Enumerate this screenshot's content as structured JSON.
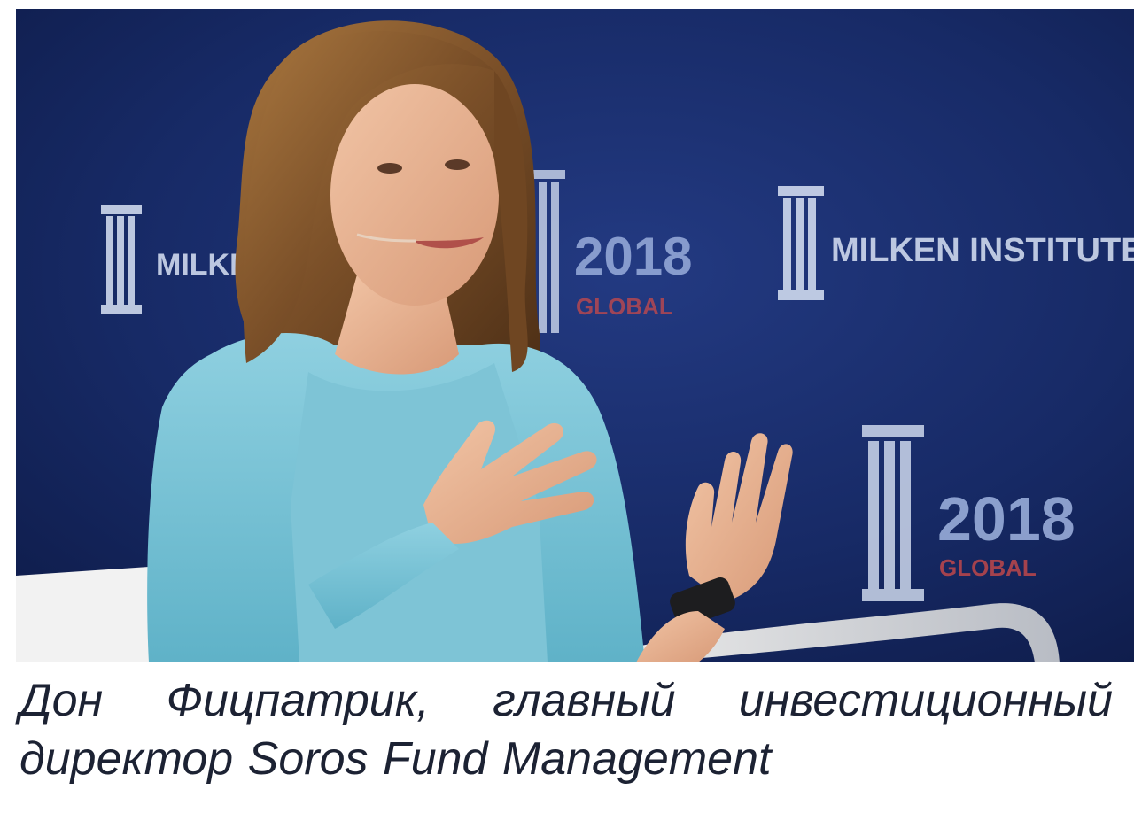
{
  "photo": {
    "description_icon": "speaker-on-stage-photo",
    "backdrop_color": "#1b2f6e",
    "backdrop_logo_text": "MILKEN INSTITUTE",
    "backdrop_year": "2018",
    "backdrop_subtitle": "GLOBAL"
  },
  "caption": {
    "text": "Дон Фицпатрик, главный инвестиционный директор Soros Fund Management"
  }
}
